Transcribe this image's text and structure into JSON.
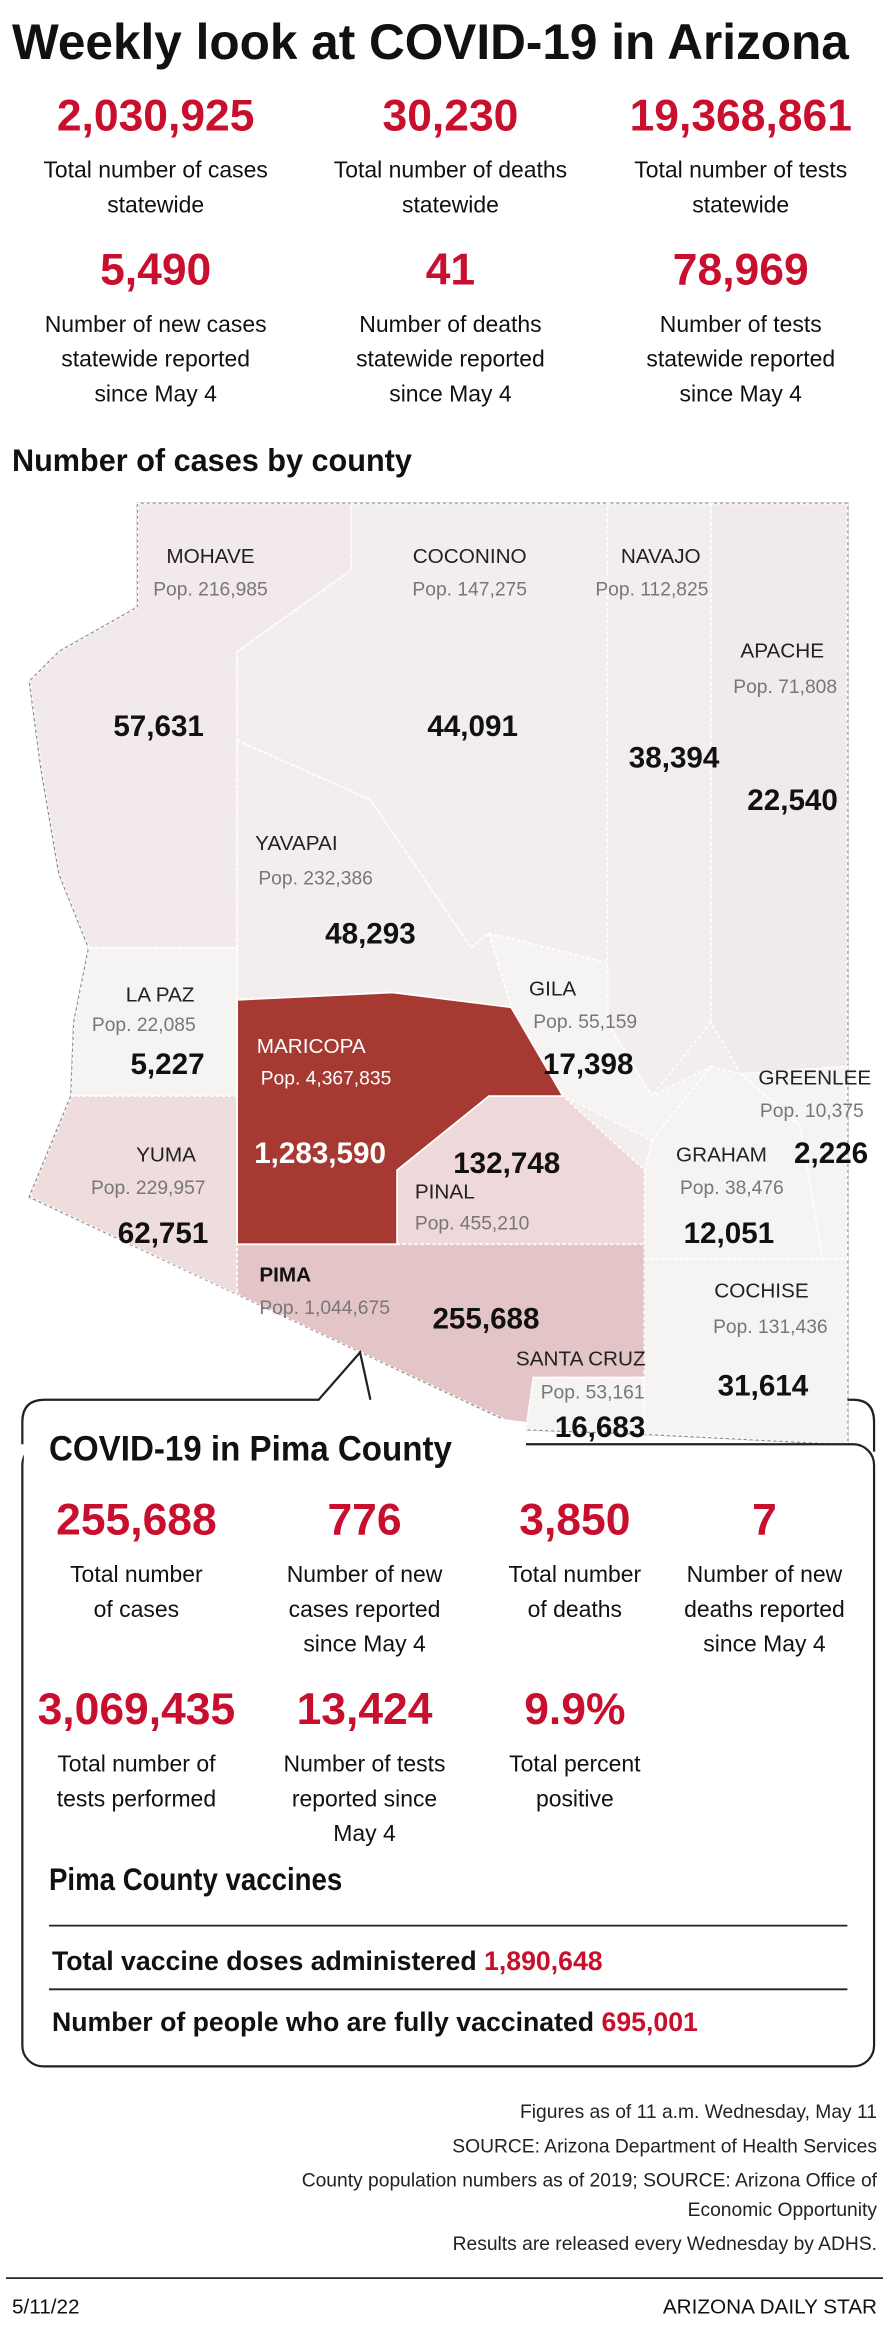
{
  "header": {
    "title": "Weekly look at COVID-19 in Arizona"
  },
  "statewide": [
    {
      "value": "2,030,925",
      "label": [
        "Total number of cases",
        "statewide"
      ]
    },
    {
      "value": "30,230",
      "label": [
        "Total number of deaths",
        "statewide"
      ]
    },
    {
      "value": "19,368,861",
      "label": [
        "Total number of tests",
        "statewide"
      ]
    },
    {
      "value": "5,490",
      "label": [
        "Number of new cases",
        "statewide reported",
        "since May 4"
      ]
    },
    {
      "value": "41",
      "label": [
        "Number of deaths",
        "statewide reported",
        "since May 4"
      ]
    },
    {
      "value": "78,969",
      "label": [
        "Number of tests",
        "statewide reported",
        "since May 4"
      ]
    }
  ],
  "map": {
    "title": "Number of cases by county",
    "counties": [
      {
        "name": "MOHAVE",
        "population": "Pop. 216,985",
        "cases": "57,631"
      },
      {
        "name": "COCONINO",
        "population": "Pop. 147,275",
        "cases": "44,091"
      },
      {
        "name": "NAVAJO",
        "population": "Pop. 112,825",
        "cases": "38,394"
      },
      {
        "name": "APACHE",
        "population": "Pop. 71,808",
        "cases": "22,540"
      },
      {
        "name": "YAVAPAI",
        "population": "Pop. 232,386",
        "cases": "48,293"
      },
      {
        "name": "LA PAZ",
        "population": "Pop. 22,085",
        "cases": "5,227"
      },
      {
        "name": "MARICOPA",
        "population": "Pop. 4,367,835",
        "cases": "1,283,590"
      },
      {
        "name": "GILA",
        "population": "Pop. 55,159",
        "cases": "17,398"
      },
      {
        "name": "GREENLEE",
        "population": "Pop. 10,375",
        "cases": "2,226"
      },
      {
        "name": "GRAHAM",
        "population": "Pop. 38,476",
        "cases": "12,051"
      },
      {
        "name": "YUMA",
        "population": "Pop. 229,957",
        "cases": "62,751"
      },
      {
        "name": "PINAL",
        "population": "Pop. 455,210",
        "cases": "132,748"
      },
      {
        "name": "PIMA",
        "population": "Pop. 1,044,675",
        "cases": "255,688"
      },
      {
        "name": "SANTA CRUZ",
        "population": "Pop. 53,161",
        "cases": "16,683"
      },
      {
        "name": "COCHISE",
        "population": "Pop. 131,436",
        "cases": "31,614"
      }
    ]
  },
  "pima": {
    "title": "COVID-19 in Pima County",
    "stats": [
      {
        "value": "255,688",
        "label": [
          "Total number",
          "of cases"
        ]
      },
      {
        "value": "776",
        "label": [
          "Number of new",
          "cases reported",
          "since May 4"
        ]
      },
      {
        "value": "3,850",
        "label": [
          "Total number",
          "of deaths"
        ]
      },
      {
        "value": "7",
        "label": [
          "Number of new",
          "deaths reported",
          "since May 4"
        ]
      },
      {
        "value": "3,069,435",
        "label": [
          "Total number of",
          "tests performed"
        ]
      },
      {
        "value": "13,424",
        "label": [
          "Number of tests",
          "reported since",
          "May 4"
        ]
      },
      {
        "value": "9.9%",
        "label": [
          "Total percent",
          "positive"
        ]
      }
    ],
    "vaccines": {
      "title": "Pima County vaccines",
      "rows": [
        {
          "label": "Total vaccine doses administered",
          "value": "1,890,648"
        },
        {
          "label": "Number of people who are fully vaccinated",
          "value": "695,001"
        }
      ]
    }
  },
  "footer": {
    "notes": [
      [
        "Figures as of 11 a.m. Wednesday, May 11"
      ],
      [
        "SOURCE: Arizona Department of Health Services"
      ],
      [
        "County population numbers as of 2019; SOURCE: Arizona Office of",
        "Economic Opportunity"
      ],
      [
        "Results are released every Wednesday by ADHS."
      ]
    ],
    "date": "5/11/22",
    "credit": "ARIZONA DAILY STAR"
  }
}
